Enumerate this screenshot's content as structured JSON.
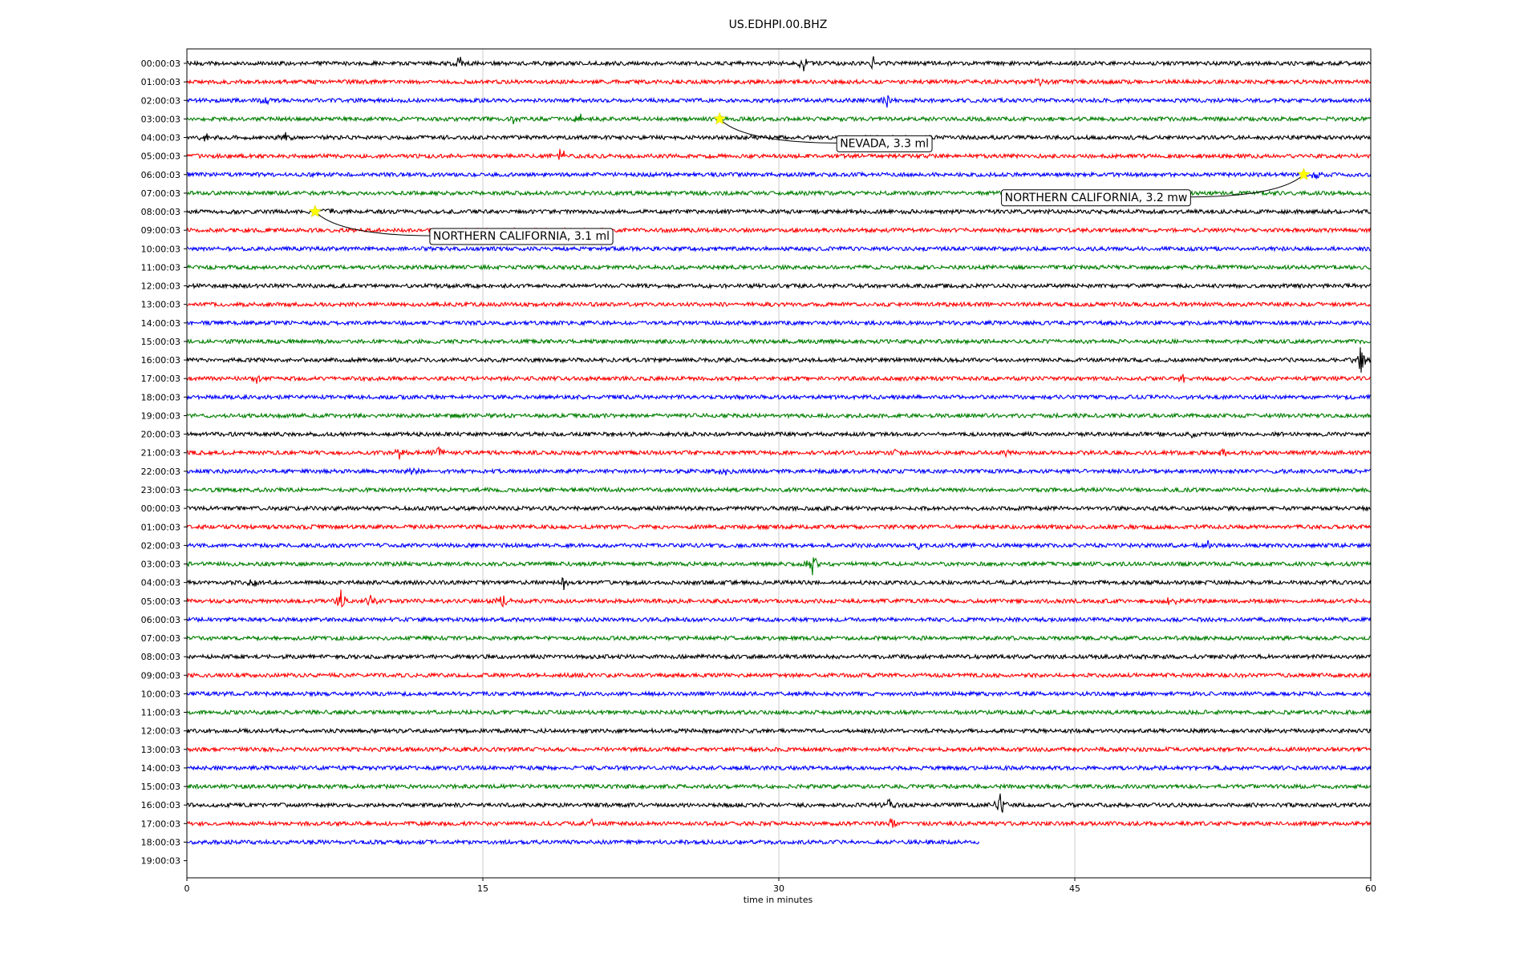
{
  "chart_data": {
    "type": "line",
    "title": "US.EDHPI.00.BHZ",
    "xlabel": "time in minutes",
    "ylabel": "",
    "xlim": [
      0,
      60
    ],
    "x_ticks": [
      "0",
      "15",
      "30",
      "45",
      "60"
    ],
    "x_tick_values": [
      0,
      15,
      30,
      45,
      60
    ],
    "grid": "vertical lines at 15, 30, 45",
    "color_cycle": [
      "#000000",
      "#ff0000",
      "#0000ff",
      "#007f00"
    ],
    "rows": [
      {
        "label": "00:00:03",
        "color": "#000000",
        "end_minute": 60
      },
      {
        "label": "01:00:03",
        "color": "#ff0000",
        "end_minute": 60
      },
      {
        "label": "02:00:03",
        "color": "#0000ff",
        "end_minute": 60
      },
      {
        "label": "03:00:03",
        "color": "#007f00",
        "end_minute": 60
      },
      {
        "label": "04:00:03",
        "color": "#000000",
        "end_minute": 60
      },
      {
        "label": "05:00:03",
        "color": "#ff0000",
        "end_minute": 60
      },
      {
        "label": "06:00:03",
        "color": "#0000ff",
        "end_minute": 60
      },
      {
        "label": "07:00:03",
        "color": "#007f00",
        "end_minute": 60
      },
      {
        "label": "08:00:03",
        "color": "#000000",
        "end_minute": 60
      },
      {
        "label": "09:00:03",
        "color": "#ff0000",
        "end_minute": 60
      },
      {
        "label": "10:00:03",
        "color": "#0000ff",
        "end_minute": 60
      },
      {
        "label": "11:00:03",
        "color": "#007f00",
        "end_minute": 60
      },
      {
        "label": "12:00:03",
        "color": "#000000",
        "end_minute": 60
      },
      {
        "label": "13:00:03",
        "color": "#ff0000",
        "end_minute": 60
      },
      {
        "label": "14:00:03",
        "color": "#0000ff",
        "end_minute": 60
      },
      {
        "label": "15:00:03",
        "color": "#007f00",
        "end_minute": 60
      },
      {
        "label": "16:00:03",
        "color": "#000000",
        "end_minute": 60
      },
      {
        "label": "17:00:03",
        "color": "#ff0000",
        "end_minute": 60
      },
      {
        "label": "18:00:03",
        "color": "#0000ff",
        "end_minute": 60
      },
      {
        "label": "19:00:03",
        "color": "#007f00",
        "end_minute": 60
      },
      {
        "label": "20:00:03",
        "color": "#000000",
        "end_minute": 60
      },
      {
        "label": "21:00:03",
        "color": "#ff0000",
        "end_minute": 60
      },
      {
        "label": "22:00:03",
        "color": "#0000ff",
        "end_minute": 60
      },
      {
        "label": "23:00:03",
        "color": "#007f00",
        "end_minute": 60
      },
      {
        "label": "00:00:03",
        "color": "#000000",
        "end_minute": 60
      },
      {
        "label": "01:00:03",
        "color": "#ff0000",
        "end_minute": 60
      },
      {
        "label": "02:00:03",
        "color": "#0000ff",
        "end_minute": 60
      },
      {
        "label": "03:00:03",
        "color": "#007f00",
        "end_minute": 60
      },
      {
        "label": "04:00:03",
        "color": "#000000",
        "end_minute": 60
      },
      {
        "label": "05:00:03",
        "color": "#ff0000",
        "end_minute": 60
      },
      {
        "label": "06:00:03",
        "color": "#0000ff",
        "end_minute": 60
      },
      {
        "label": "07:00:03",
        "color": "#007f00",
        "end_minute": 60
      },
      {
        "label": "08:00:03",
        "color": "#000000",
        "end_minute": 60
      },
      {
        "label": "09:00:03",
        "color": "#ff0000",
        "end_minute": 60
      },
      {
        "label": "10:00:03",
        "color": "#0000ff",
        "end_minute": 60
      },
      {
        "label": "11:00:03",
        "color": "#007f00",
        "end_minute": 60
      },
      {
        "label": "12:00:03",
        "color": "#000000",
        "end_minute": 60
      },
      {
        "label": "13:00:03",
        "color": "#ff0000",
        "end_minute": 60
      },
      {
        "label": "14:00:03",
        "color": "#0000ff",
        "end_minute": 60
      },
      {
        "label": "15:00:03",
        "color": "#007f00",
        "end_minute": 60
      },
      {
        "label": "16:00:03",
        "color": "#000000",
        "end_minute": 60
      },
      {
        "label": "17:00:03",
        "color": "#ff0000",
        "end_minute": 60
      },
      {
        "label": "18:00:03",
        "color": "#0000ff",
        "end_minute": 40.2
      },
      {
        "label": "19:00:03",
        "color": "#007f00",
        "end_minute": 0
      }
    ],
    "bursts": [
      {
        "row": 0,
        "minute": 13.8,
        "amp": 0.55
      },
      {
        "row": 0,
        "minute": 31.3,
        "amp": 0.6
      },
      {
        "row": 0,
        "minute": 34.8,
        "amp": 0.4
      },
      {
        "row": 1,
        "minute": 43.2,
        "amp": 0.5
      },
      {
        "row": 2,
        "minute": 35.5,
        "amp": 0.45
      },
      {
        "row": 2,
        "minute": 4.0,
        "amp": 0.3
      },
      {
        "row": 3,
        "minute": 16.5,
        "amp": 0.35
      },
      {
        "row": 3,
        "minute": 19.9,
        "amp": 0.4
      },
      {
        "row": 4,
        "minute": 1.0,
        "amp": 0.35
      },
      {
        "row": 4,
        "minute": 5.0,
        "amp": 0.3
      },
      {
        "row": 5,
        "minute": 19.0,
        "amp": 0.7
      },
      {
        "row": 6,
        "minute": 57.2,
        "amp": 0.35
      },
      {
        "row": 8,
        "minute": 7.1,
        "amp": 0.45
      },
      {
        "row": 16,
        "minute": 59.5,
        "amp": 1.0
      },
      {
        "row": 17,
        "minute": 3.5,
        "amp": 0.35
      },
      {
        "row": 17,
        "minute": 50.5,
        "amp": 0.35
      },
      {
        "row": 20,
        "minute": 51.0,
        "amp": 0.4
      },
      {
        "row": 21,
        "minute": 10.8,
        "amp": 0.45
      },
      {
        "row": 21,
        "minute": 12.7,
        "amp": 0.5
      },
      {
        "row": 21,
        "minute": 36.0,
        "amp": 0.3
      },
      {
        "row": 21,
        "minute": 41.5,
        "amp": 0.3
      },
      {
        "row": 21,
        "minute": 52.5,
        "amp": 0.35
      },
      {
        "row": 22,
        "minute": 11.5,
        "amp": 0.3
      },
      {
        "row": 22,
        "minute": 27.2,
        "amp": 0.35
      },
      {
        "row": 26,
        "minute": 37.1,
        "amp": 0.35
      },
      {
        "row": 26,
        "minute": 51.7,
        "amp": 0.3
      },
      {
        "row": 27,
        "minute": 31.7,
        "amp": 1.0
      },
      {
        "row": 28,
        "minute": 3.4,
        "amp": 0.4
      },
      {
        "row": 28,
        "minute": 19.1,
        "amp": 0.5
      },
      {
        "row": 29,
        "minute": 7.8,
        "amp": 0.8
      },
      {
        "row": 29,
        "minute": 9.3,
        "amp": 0.5
      },
      {
        "row": 29,
        "minute": 16.0,
        "amp": 0.5
      },
      {
        "row": 29,
        "minute": 49.9,
        "amp": 0.5
      },
      {
        "row": 40,
        "minute": 35.6,
        "amp": 0.5
      },
      {
        "row": 40,
        "minute": 41.2,
        "amp": 1.0
      },
      {
        "row": 41,
        "minute": 35.8,
        "amp": 0.5
      },
      {
        "row": 41,
        "minute": 20.5,
        "amp": 0.35
      }
    ],
    "events": [
      {
        "label": "NEVADA, 3.3 ml",
        "row": 3,
        "minute": 27.0
      },
      {
        "label": "NORTHERN CALIFORNIA, 3.2 mw",
        "row": 6,
        "minute": 56.6
      },
      {
        "label": "NORTHERN CALIFORNIA, 3.1 ml",
        "row": 8,
        "minute": 6.5
      }
    ]
  }
}
